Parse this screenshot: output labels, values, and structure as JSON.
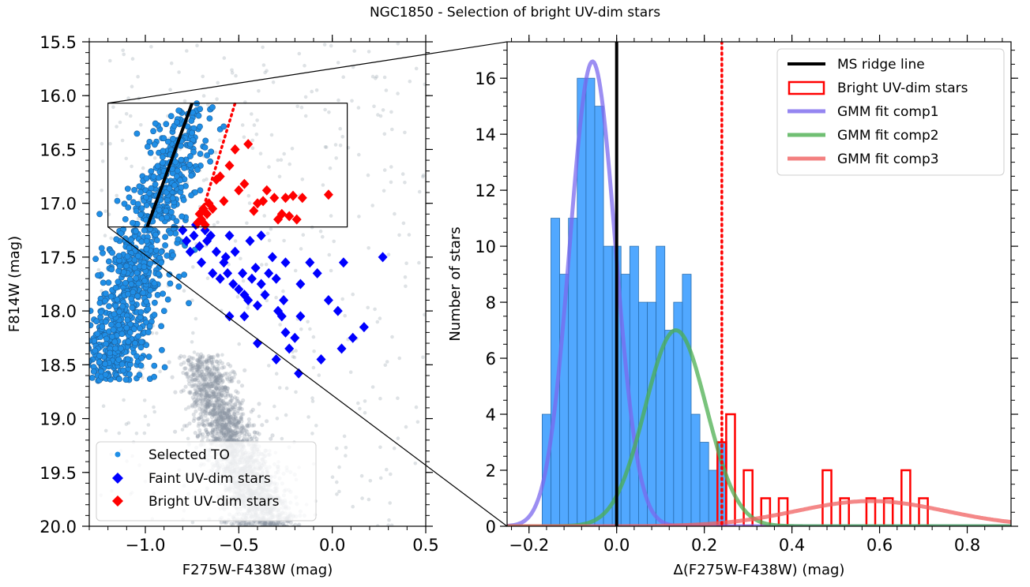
{
  "figure_title": "NGC1850 - Selection of bright UV-dim stars",
  "colors": {
    "selected_to": "#1f8ee6",
    "faint_uvdim": "#0000ff",
    "bright_uvdim": "#ff0000",
    "background_stars": "#8a96a2",
    "hist_fill": "#3399ff",
    "ms_ridge": "#000000",
    "gmm_comp1": "#7b68ee",
    "gmm_comp2": "#4caf50",
    "gmm_comp3": "#f06060"
  },
  "chart_data": [
    {
      "type": "scatter",
      "xlabel": "F275W-F438W (mag)",
      "ylabel": "F814W (mag)",
      "xlim": [
        -1.3,
        0.5
      ],
      "ylim": [
        20.0,
        15.5
      ],
      "y_inverted": true,
      "xticks": [
        "−1.0",
        "−0.5",
        "0.0",
        "0.5"
      ],
      "yticks": [
        "15.5",
        "16.0",
        "16.5",
        "17.0",
        "17.5",
        "18.0",
        "18.5",
        "19.0",
        "19.5",
        "20.0"
      ],
      "legend_position": "lower-left",
      "series": [
        {
          "name": "Selected TO",
          "marker": "circle",
          "count_estimate": 900,
          "x_range": [
            -1.25,
            -0.45
          ],
          "y_range": [
            16.05,
            18.65
          ]
        },
        {
          "name": "Faint UV-dim stars",
          "marker": "diamond",
          "points": [
            [
              -0.8,
              17.25
            ],
            [
              -0.78,
              17.35
            ],
            [
              -0.76,
              17.45
            ],
            [
              -0.74,
              17.3
            ],
            [
              -0.73,
              17.2
            ],
            [
              -0.71,
              17.4
            ],
            [
              -0.7,
              17.55
            ],
            [
              -0.68,
              17.25
            ],
            [
              -0.67,
              17.35
            ],
            [
              -0.65,
              17.3
            ],
            [
              -0.64,
              17.65
            ],
            [
              -0.62,
              17.45
            ],
            [
              -0.6,
              17.7
            ],
            [
              -0.58,
              17.55
            ],
            [
              -0.56,
              17.65
            ],
            [
              -0.55,
              17.3
            ],
            [
              -0.53,
              17.75
            ],
            [
              -0.5,
              17.8
            ],
            [
              -0.48,
              17.65
            ],
            [
              -0.47,
              17.85
            ],
            [
              -0.45,
              17.9
            ],
            [
              -0.43,
              17.7
            ],
            [
              -0.41,
              17.6
            ],
            [
              -0.4,
              17.95
            ],
            [
              -0.38,
              17.75
            ],
            [
              -0.36,
              17.85
            ],
            [
              -0.34,
              17.65
            ],
            [
              -0.32,
              17.5
            ],
            [
              -0.3,
              17.7
            ],
            [
              -0.29,
              18.0
            ],
            [
              -0.27,
              18.05
            ],
            [
              -0.26,
              17.9
            ],
            [
              -0.25,
              18.2
            ],
            [
              -0.23,
              18.35
            ],
            [
              -0.2,
              18.25
            ],
            [
              -0.18,
              18.58
            ],
            [
              -0.17,
              18.05
            ],
            [
              -0.3,
              18.45
            ],
            [
              -0.4,
              18.3
            ],
            [
              -0.47,
              18.05
            ],
            [
              -0.55,
              18.05
            ],
            [
              -0.57,
              17.5
            ],
            [
              -0.52,
              17.45
            ],
            [
              -0.44,
              17.35
            ],
            [
              -0.38,
              17.3
            ],
            [
              -0.25,
              17.55
            ],
            [
              -0.17,
              17.75
            ],
            [
              -0.12,
              17.55
            ],
            [
              -0.08,
              17.65
            ],
            [
              0.06,
              17.55
            ],
            [
              0.11,
              18.25
            ],
            [
              0.17,
              18.15
            ],
            [
              0.27,
              17.5
            ],
            [
              -0.06,
              18.45
            ],
            [
              0.05,
              18.35
            ],
            [
              -0.02,
              17.9
            ],
            [
              0.03,
              18.0
            ]
          ]
        },
        {
          "name": "Bright UV-dim stars",
          "marker": "diamond",
          "points": [
            [
              -0.72,
              17.18
            ],
            [
              -0.71,
              17.1
            ],
            [
              -0.7,
              17.15
            ],
            [
              -0.69,
              17.05
            ],
            [
              -0.68,
              17.2
            ],
            [
              -0.67,
              17.1
            ],
            [
              -0.66,
              17.0
            ],
            [
              -0.64,
              17.05
            ],
            [
              -0.62,
              16.78
            ],
            [
              -0.6,
              16.75
            ],
            [
              -0.58,
              16.98
            ],
            [
              -0.55,
              16.65
            ],
            [
              -0.52,
              16.5
            ],
            [
              -0.5,
              16.88
            ],
            [
              -0.47,
              16.82
            ],
            [
              -0.45,
              16.45
            ],
            [
              -0.42,
              17.07
            ],
            [
              -0.4,
              17.0
            ],
            [
              -0.37,
              16.98
            ],
            [
              -0.35,
              16.88
            ],
            [
              -0.31,
              16.95
            ],
            [
              -0.29,
              17.15
            ],
            [
              -0.27,
              17.1
            ],
            [
              -0.25,
              16.95
            ],
            [
              -0.23,
              17.12
            ],
            [
              -0.21,
              16.93
            ],
            [
              -0.19,
              17.15
            ],
            [
              -0.16,
              16.95
            ],
            [
              -0.02,
              16.92
            ]
          ]
        }
      ],
      "lines": [
        {
          "name": "MS ridge line",
          "style": "solid",
          "points": [
            [
              -0.99,
              17.22
            ],
            [
              -0.75,
              16.07
            ]
          ]
        },
        {
          "name": "Selection boundary",
          "style": "dotted",
          "points": [
            [
              -0.72,
              17.22
            ],
            [
              -0.52,
              16.07
            ]
          ]
        }
      ],
      "zoom_box": {
        "x": [
          -1.2,
          0.08
        ],
        "y": [
          16.07,
          17.22
        ]
      }
    },
    {
      "type": "bar",
      "xlabel": "Δ(F275W-F438W) (mag)",
      "ylabel": "Number of stars",
      "xlim": [
        -0.25,
        0.9
      ],
      "ylim": [
        0,
        17.3
      ],
      "xticks": [
        "−0.2",
        "0.0",
        "0.2",
        "0.4",
        "0.6",
        "0.8"
      ],
      "yticks": [
        "0",
        "2",
        "4",
        "6",
        "8",
        "10",
        "12",
        "14",
        "16"
      ],
      "legend_position": "top-right",
      "bin_width": 0.02,
      "series": [
        {
          "name": "",
          "style": "filled",
          "bin_start": -0.17,
          "counts": [
            4,
            11,
            9,
            11,
            16,
            16,
            15,
            10,
            10,
            9,
            10,
            8,
            8,
            10,
            7,
            8,
            9,
            4,
            3,
            2,
            3
          ]
        },
        {
          "name": "Bright UV-dim stars",
          "style": "step-outline",
          "bins": [
            [
              0.23,
              3
            ],
            [
              0.25,
              4
            ],
            [
              0.29,
              2
            ],
            [
              0.33,
              1
            ],
            [
              0.37,
              1
            ],
            [
              0.47,
              2
            ],
            [
              0.51,
              1
            ],
            [
              0.57,
              1
            ],
            [
              0.61,
              1
            ],
            [
              0.65,
              2
            ],
            [
              0.69,
              1
            ]
          ]
        }
      ],
      "vlines": [
        {
          "name": "MS ridge line",
          "x": 0.0,
          "style": "solid"
        },
        {
          "name": "Selection threshold",
          "x": 0.24,
          "style": "dotted"
        }
      ],
      "gmm": [
        {
          "name": "GMM fit comp1",
          "amplitude": 16.6,
          "mean": -0.055,
          "sigma": 0.052
        },
        {
          "name": "GMM fit comp2",
          "amplitude": 7.0,
          "mean": 0.135,
          "sigma": 0.07
        },
        {
          "name": "GMM fit comp3",
          "amplitude": 0.9,
          "mean": 0.58,
          "sigma": 0.17
        }
      ]
    }
  ]
}
